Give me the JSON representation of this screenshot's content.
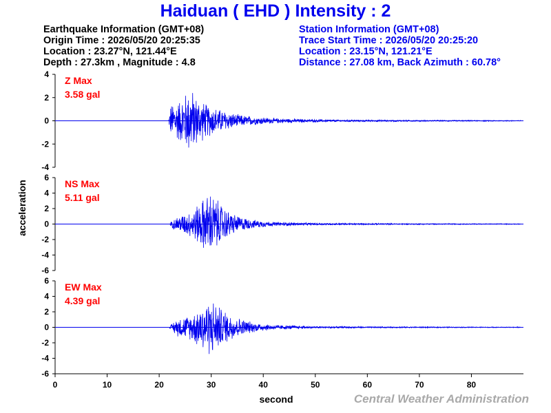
{
  "header": {
    "title": "Haiduan ( EHD ) Intensity : 2"
  },
  "earthquake_info": {
    "heading": "Earthquake Information  (GMT+08)",
    "origin_time": "Origin Time : 2026/05/20 20:25:35",
    "location": "Location : 23.27°N, 121.44°E",
    "depth_magnitude": "Depth : 27.3km , Magnitude : 4.8"
  },
  "station_info": {
    "heading": "Station Information  (GMT+08)",
    "trace_start": "Trace Start Time : 2026/05/20 20:25:20",
    "location": "Location : 23.15°N, 121.21°E",
    "distance": "Distance : 27.08 km, Back Azimuth : 60.78°"
  },
  "footer": {
    "credit": "Central Weather Administration"
  },
  "colors": {
    "trace": "#0000ee",
    "max_label": "#ff0000",
    "title": "#0000ee",
    "credit": "#a9a9a9"
  },
  "chart_data": {
    "type": "line",
    "xlabel": "second",
    "ylabel": "acceleration",
    "xlim": [
      0,
      90
    ],
    "x_ticks": [
      0,
      10,
      20,
      30,
      40,
      50,
      60,
      70,
      80
    ],
    "panels": [
      {
        "name": "Z",
        "max_label": "Z Max",
        "max_value": "3.58 gal",
        "ylim": [
          -4,
          4
        ],
        "y_ticks": [
          -4,
          -2,
          0,
          2,
          4
        ],
        "envelope": [
          [
            21.8,
            0.05
          ],
          [
            22.2,
            1.5
          ],
          [
            23,
            1.8
          ],
          [
            24,
            2.0
          ],
          [
            25,
            2.6
          ],
          [
            26,
            3.2
          ],
          [
            27,
            2.4
          ],
          [
            28,
            2.0
          ],
          [
            29,
            1.6
          ],
          [
            30,
            1.4
          ],
          [
            31,
            1.2
          ],
          [
            33,
            0.9
          ],
          [
            35,
            0.6
          ],
          [
            38,
            0.4
          ],
          [
            42,
            0.25
          ],
          [
            48,
            0.15
          ],
          [
            55,
            0.1
          ],
          [
            65,
            0.07
          ],
          [
            80,
            0.05
          ],
          [
            90,
            0.04
          ]
        ]
      },
      {
        "name": "NS",
        "max_label": "NS Max",
        "max_value": "5.11 gal",
        "ylim": [
          -6,
          6
        ],
        "y_ticks": [
          -6,
          -4,
          -2,
          0,
          2,
          4,
          6
        ],
        "envelope": [
          [
            22.0,
            0.1
          ],
          [
            23,
            0.9
          ],
          [
            24,
            1.2
          ],
          [
            25,
            1.5
          ],
          [
            26,
            1.8
          ],
          [
            27,
            2.5
          ],
          [
            28,
            3.2
          ],
          [
            29,
            4.0
          ],
          [
            30,
            4.5
          ],
          [
            31,
            3.5
          ],
          [
            32,
            2.8
          ],
          [
            33,
            2.0
          ],
          [
            35,
            1.2
          ],
          [
            38,
            0.6
          ],
          [
            42,
            0.3
          ],
          [
            50,
            0.15
          ],
          [
            60,
            0.1
          ],
          [
            75,
            0.07
          ],
          [
            90,
            0.05
          ]
        ]
      },
      {
        "name": "EW",
        "max_label": "EW Max",
        "max_value": "4.39 gal",
        "ylim": [
          -6,
          6
        ],
        "y_ticks": [
          -6,
          -4,
          -2,
          0,
          2,
          4,
          6
        ],
        "envelope": [
          [
            22.0,
            0.1
          ],
          [
            23,
            1.0
          ],
          [
            24,
            1.4
          ],
          [
            25,
            1.5
          ],
          [
            26,
            1.7
          ],
          [
            27,
            2.4
          ],
          [
            28,
            3.0
          ],
          [
            29,
            3.6
          ],
          [
            30,
            4.0
          ],
          [
            31,
            3.4
          ],
          [
            32,
            2.6
          ],
          [
            33,
            2.2
          ],
          [
            35,
            1.4
          ],
          [
            38,
            0.7
          ],
          [
            42,
            0.35
          ],
          [
            50,
            0.15
          ],
          [
            60,
            0.1
          ],
          [
            75,
            0.07
          ],
          [
            90,
            0.05
          ]
        ]
      }
    ]
  }
}
